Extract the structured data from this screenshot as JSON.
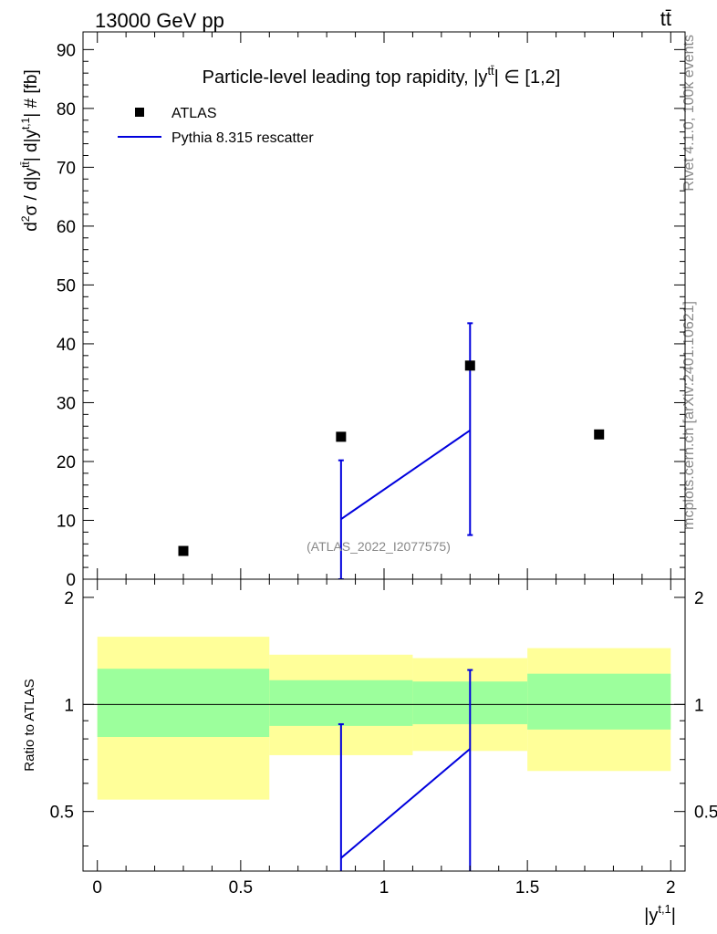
{
  "header": {
    "left_label": "13000 GeV pp",
    "right_label": "tt̄"
  },
  "side_text": {
    "rivet": "Rivet 4.1.0,  100k events",
    "mcplots": "mcplots.cern.ch [arXiv:2401.10621]"
  },
  "chart_data": [
    {
      "type": "scatter",
      "title": "Particle-level leading top rapidity, |ytt̄| ∈ [1,2]",
      "title_parts": {
        "prefix": "Particle-level leading top rapidity, |y",
        "sup": "tt̄",
        "suffix": "| ∈ [1,2]"
      },
      "ylabel": "d²σ / d|ytt̄| d|yt,1| # [fb]",
      "ylabel_parts": {
        "a": "d",
        "a_sup": "2",
        "b": "σ / d|y",
        "b_sup": "tt̄",
        "c": "| d|y",
        "c_sup": "t,1",
        "d": "| # [fb]"
      },
      "watermark": "(ATLAS_2022_I2077575)",
      "xlim": [
        -0.05,
        2.05
      ],
      "ylim": [
        0,
        93
      ],
      "yticks": [
        0,
        10,
        20,
        30,
        40,
        50,
        60,
        70,
        80,
        90
      ],
      "yticklabels": [
        "0",
        "10",
        "20",
        "30",
        "40",
        "50",
        "60",
        "70",
        "80",
        "90"
      ],
      "legend_position": "top-left",
      "series": [
        {
          "name": "ATLAS",
          "style": "markers",
          "color": "#000000",
          "x": [
            0.3,
            0.85,
            1.3,
            1.75
          ],
          "y": [
            4.8,
            24.2,
            36.3,
            24.6
          ]
        },
        {
          "name": "Pythia 8.315 rescatter",
          "style": "line",
          "color": "#0000dd",
          "x": [
            0.85,
            1.3
          ],
          "y": [
            10.2,
            25.3
          ],
          "err_low": [
            10.2,
            17.8
          ],
          "err_high": [
            10.0,
            18.2
          ]
        }
      ]
    },
    {
      "type": "line",
      "ylabel": "Ratio to ATLAS",
      "xlabel": "|yt,1|",
      "xlabel_parts": {
        "a": "|y",
        "sup": "t,1",
        "b": "|"
      },
      "xlim": [
        -0.05,
        2.05
      ],
      "ylim": [
        0.34,
        2.25
      ],
      "xticks": [
        0,
        0.5,
        1,
        1.5,
        2
      ],
      "xticklabels": [
        "0",
        "0.5",
        "1",
        "1.5",
        "2"
      ],
      "yticks": [
        0.5,
        1,
        2
      ],
      "yticklabels": [
        "0.5",
        "1",
        "2"
      ],
      "reference_line": 1,
      "bands": [
        {
          "x0": 0.0,
          "x1": 0.6,
          "inner": [
            0.81,
            1.26
          ],
          "outer": [
            0.54,
            1.55
          ],
          "color_inner": "#9cff9c",
          "color_outer": "#ffff99"
        },
        {
          "x0": 0.6,
          "x1": 1.1,
          "inner": [
            0.87,
            1.17
          ],
          "outer": [
            0.72,
            1.38
          ],
          "color_inner": "#9cff9c",
          "color_outer": "#ffff99"
        },
        {
          "x0": 1.1,
          "x1": 1.5,
          "inner": [
            0.88,
            1.16
          ],
          "outer": [
            0.74,
            1.35
          ],
          "color_inner": "#9cff9c",
          "color_outer": "#ffff99"
        },
        {
          "x0": 1.5,
          "x1": 2.0,
          "inner": [
            0.85,
            1.22
          ],
          "outer": [
            0.65,
            1.44
          ],
          "color_inner": "#9cff9c",
          "color_outer": "#ffff99"
        }
      ],
      "series": [
        {
          "name": "Pythia 8.315 rescatter",
          "color": "#0000dd",
          "x": [
            0.85,
            1.3
          ],
          "y": [
            0.37,
            0.75
          ],
          "err_low": [
            0.1,
            0.45
          ],
          "err_high": [
            0.51,
            0.5
          ]
        }
      ]
    }
  ]
}
